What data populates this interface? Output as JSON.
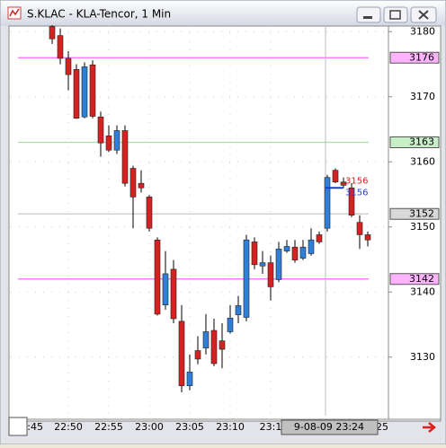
{
  "window": {
    "title": "S.KLAC - KLA-Tencor, 1 Min"
  },
  "chart_data": {
    "type": "candlestick",
    "ylim": [
      3121,
      3181
    ],
    "yticks": [
      3130,
      3140,
      3150,
      3160,
      3170,
      3180
    ],
    "grid": true,
    "up_color": "#2f7fd6",
    "down_color": "#d42222",
    "categories": [
      null,
      null,
      "22:50",
      null,
      null,
      null,
      null,
      "22:55",
      null,
      null,
      null,
      null,
      "23:00",
      null,
      null,
      null,
      null,
      "23:05",
      null,
      null,
      null,
      null,
      "23:10",
      null,
      null,
      null,
      null,
      "23:1",
      null,
      null,
      null,
      null,
      null,
      null,
      null,
      null,
      null,
      null,
      null,
      null
    ],
    "edge_labels": [
      ":45",
      ":25"
    ],
    "crosshair_label": "9-08-09 23:24",
    "open": [
      3180.8,
      3179.4,
      3175.9,
      3174.2,
      3166.9,
      3174.9,
      3166.9,
      3164.0,
      3161.8,
      3164.8,
      3159.0,
      3156.7,
      3154.6,
      3148.0,
      3138.0,
      3143.5,
      3135.5,
      3125.6,
      3131.0,
      3131.4,
      3134.1,
      3132.5,
      3133.9,
      3136.5,
      3136.1,
      3147.7,
      3144.0,
      3144.5,
      3141.9,
      3146.3,
      3146.9,
      3145.2,
      3145.9,
      3148.8,
      3149.8,
      3158.7,
      3156.9,
      3156.0,
      3150.7,
      3148.8
    ],
    "high": [
      3181.0,
      3180.5,
      3177.0,
      3175.0,
      3175.3,
      3175.6,
      3167.7,
      3165.6,
      3165.6,
      3165.6,
      3159.4,
      3158.7,
      3154.9,
      3148.4,
      3146.3,
      3144.9,
      3138.0,
      3130.4,
      3133.2,
      3136.6,
      3135.9,
      3135.2,
      3138.0,
      3139.4,
      3148.8,
      3148.4,
      3146.3,
      3145.6,
      3147.7,
      3148.0,
      3148.0,
      3148.0,
      3149.8,
      3149.3,
      3158.0,
      3159.0,
      3157.6,
      3156.7,
      3151.8,
      3149.3
    ],
    "low": [
      3178.1,
      3175.0,
      3171.0,
      3166.6,
      3166.7,
      3166.7,
      3160.8,
      3161.5,
      3161.2,
      3156.2,
      3149.8,
      3155.3,
      3149.3,
      3136.4,
      3137.3,
      3135.2,
      3124.6,
      3124.9,
      3128.9,
      3130.4,
      3128.6,
      3128.3,
      3133.6,
      3135.2,
      3135.5,
      3143.5,
      3142.8,
      3138.7,
      3141.5,
      3146.0,
      3144.5,
      3144.9,
      3145.6,
      3147.4,
      3149.3,
      3156.7,
      3156.0,
      3151.5,
      3146.6,
      3147.0
    ],
    "close": [
      3178.9,
      3175.9,
      3173.4,
      3166.7,
      3174.6,
      3167.0,
      3162.9,
      3161.8,
      3164.8,
      3156.7,
      3154.6,
      3156.0,
      3149.8,
      3136.6,
      3142.8,
      3135.9,
      3125.6,
      3127.7,
      3129.7,
      3133.9,
      3129.0,
      3131.2,
      3136.0,
      3137.9,
      3148.0,
      3144.2,
      3144.5,
      3140.8,
      3146.6,
      3147.0,
      3144.9,
      3146.9,
      3148.0,
      3147.7,
      3157.6,
      3156.9,
      3156.4,
      3151.8,
      3148.8,
      3148.0
    ],
    "levels": [
      {
        "value": 3176,
        "color": "#ff66ff",
        "label_bg": "#ffb3ff"
      },
      {
        "value": 3163,
        "color": "#a8e0a8",
        "label_bg": "#c8f0c8"
      },
      {
        "value": 3152,
        "color": "#c8c8c8",
        "label_bg": "#d8d8d8"
      },
      {
        "value": 3142,
        "color": "#ff66ff",
        "label_bg": "#ffb3ff"
      }
    ],
    "price_marker": {
      "value": 3156,
      "color": "#1a3fd0"
    },
    "quotes": [
      {
        "value": 3156,
        "color": "#e02020"
      },
      {
        "value": 3156,
        "color": "#2a3fd0"
      }
    ]
  }
}
